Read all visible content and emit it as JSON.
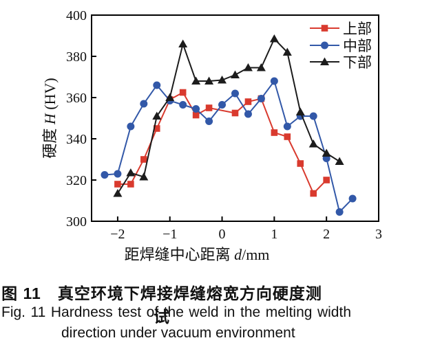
{
  "figure": {
    "caption_zh": "图 11　真空环境下焊接焊缝熔宽方向硬度测试",
    "caption_en_line1": "Fig. 11  Hardness test of the weld in the melting width",
    "caption_en_line2": "direction under vacuum environment"
  },
  "chart_data": {
    "type": "line",
    "title": "",
    "xlabel_parts": [
      {
        "t": "距焊缝中心距离 "
      },
      {
        "t": "d",
        "italic": true
      },
      {
        "t": "/mm"
      }
    ],
    "ylabel_parts": [
      {
        "t": "硬度 "
      },
      {
        "t": "H",
        "italic": true
      },
      {
        "t": " (HV)"
      }
    ],
    "xlim": [
      -2.5,
      3
    ],
    "ylim": [
      300,
      400
    ],
    "x_ticks": [
      -2,
      -1,
      0,
      1,
      2,
      3
    ],
    "x_tick_labels": [
      "−2",
      "−1",
      "0",
      "1",
      "2",
      "3"
    ],
    "y_ticks": [
      300,
      320,
      340,
      360,
      380,
      400
    ],
    "y_tick_labels": [
      "300",
      "320",
      "340",
      "360",
      "380",
      "400"
    ],
    "grid": false,
    "legend_position": "top-right",
    "frame_color": "#000000",
    "series": [
      {
        "key": "upper",
        "name": "上部",
        "color": "#d93a2e",
        "marker": "square",
        "points": [
          [
            -2,
            318
          ],
          [
            -1.75,
            318
          ],
          [
            -1.5,
            330
          ],
          [
            -1.25,
            345
          ],
          [
            -1,
            359
          ],
          [
            -0.75,
            362.5
          ],
          [
            -0.5,
            351.5
          ],
          [
            -0.25,
            355
          ],
          [
            0.25,
            352.5
          ],
          [
            0.5,
            358
          ],
          [
            0.75,
            359.5
          ],
          [
            1,
            343
          ],
          [
            1.25,
            341
          ],
          [
            1.5,
            328
          ],
          [
            1.75,
            313.5
          ],
          [
            2,
            320
          ]
        ]
      },
      {
        "key": "middle",
        "name": "中部",
        "color": "#3258a8",
        "marker": "circle",
        "points": [
          [
            -2.25,
            322.5
          ],
          [
            -2,
            323
          ],
          [
            -1.75,
            346
          ],
          [
            -1.5,
            357
          ],
          [
            -1.25,
            366
          ],
          [
            -1,
            358.5
          ],
          [
            -0.75,
            356.5
          ],
          [
            -0.5,
            354.5
          ],
          [
            -0.25,
            348.5
          ],
          [
            0,
            356.5
          ],
          [
            0.25,
            362
          ],
          [
            0.5,
            352
          ],
          [
            0.75,
            359.5
          ],
          [
            1,
            368
          ],
          [
            1.25,
            346
          ],
          [
            1.5,
            351
          ],
          [
            1.75,
            351
          ],
          [
            2,
            330.5
          ],
          [
            2.25,
            304.5
          ],
          [
            2.5,
            311
          ]
        ]
      },
      {
        "key": "lower",
        "name": "下部",
        "color": "#1c1c1c",
        "marker": "triangle",
        "points": [
          [
            -2,
            313.5
          ],
          [
            -1.75,
            323.5
          ],
          [
            -1.5,
            321.5
          ],
          [
            -1.25,
            351
          ],
          [
            -1,
            360
          ],
          [
            -0.75,
            386
          ],
          [
            -0.5,
            368
          ],
          [
            -0.25,
            368
          ],
          [
            0,
            368.5
          ],
          [
            0.25,
            371
          ],
          [
            0.5,
            374.5
          ],
          [
            0.75,
            374.5
          ],
          [
            1,
            388.5
          ],
          [
            1.25,
            382
          ],
          [
            1.5,
            353
          ],
          [
            1.75,
            337.5
          ],
          [
            2,
            333
          ],
          [
            2.25,
            329
          ]
        ]
      }
    ]
  }
}
